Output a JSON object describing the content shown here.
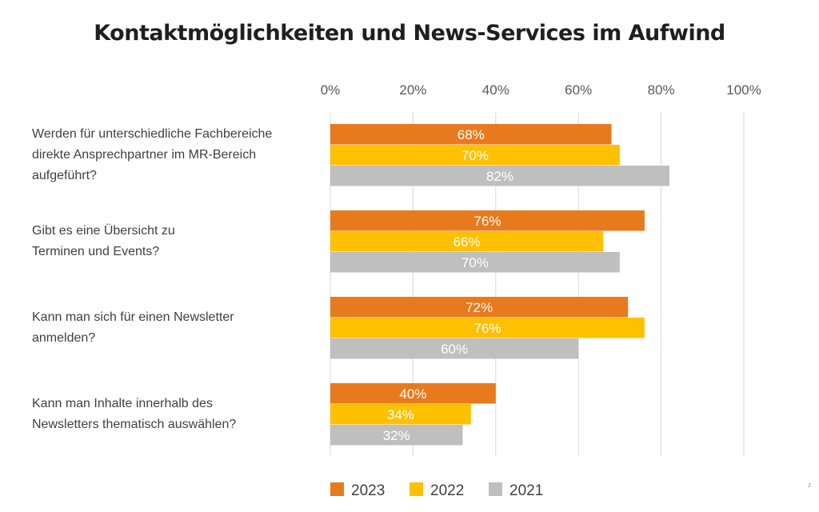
{
  "title": "Kontaktmöglichkeiten und News-Services im Aufwind",
  "slide_number": "2",
  "colors": {
    "2023": "#E87A1E",
    "2022": "#FFC000",
    "2021": "#BFBFBF"
  },
  "chart_data": {
    "type": "bar",
    "orientation": "horizontal",
    "title": "Kontaktmöglichkeiten und News-Services im Aufwind",
    "xlim": [
      0,
      100
    ],
    "x_tick_labels": [
      "0%",
      "20%",
      "40%",
      "60%",
      "80%",
      "100%"
    ],
    "grid": true,
    "legend_position": "bottom",
    "categories": [
      "Werden für unterschiedliche Fachbereiche direkte Ansprechpartner im MR-Bereich aufgeführt?",
      "Gibt es eine Übersicht zu Terminen und Events?",
      "Kann man sich für einen Newsletter anmelden?",
      "Kann man Inhalte innerhalb des Newsletters thematisch auswählen?"
    ],
    "category_lines": [
      [
        "Werden für unterschiedliche Fachbereiche",
        "direkte Ansprechpartner im MR-Bereich",
        "aufgeführt?"
      ],
      [
        "Gibt es eine Übersicht zu",
        "Terminen und Events?"
      ],
      [
        "Kann man sich für einen Newsletter",
        "anmelden?"
      ],
      [
        "Kann man Inhalte innerhalb des",
        "Newsletters thematisch auswählen?"
      ]
    ],
    "series": [
      {
        "name": "2023",
        "color": "#E87A1E",
        "values": [
          68,
          76,
          72,
          40
        ],
        "labels": [
          "68%",
          "76%",
          "72%",
          "40%"
        ]
      },
      {
        "name": "2022",
        "color": "#FFC000",
        "values": [
          70,
          66,
          76,
          34
        ],
        "labels": [
          "70%",
          "66%",
          "76%",
          "34%"
        ]
      },
      {
        "name": "2021",
        "color": "#BFBFBF",
        "values": [
          82,
          70,
          60,
          32
        ],
        "labels": [
          "82%",
          "70%",
          "60%",
          "32%"
        ]
      }
    ]
  }
}
